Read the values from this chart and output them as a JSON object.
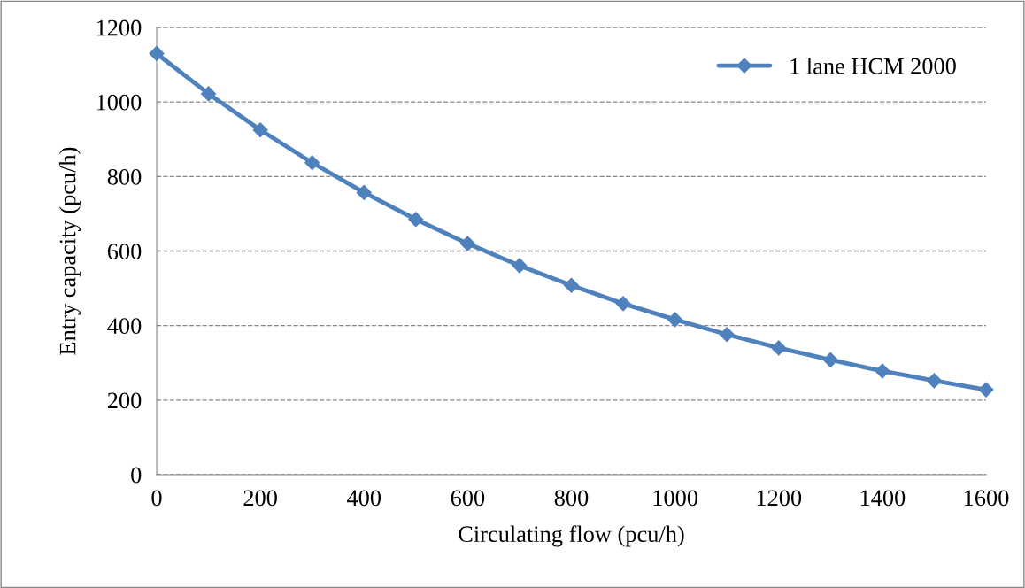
{
  "chart_data": {
    "type": "line",
    "xlabel": "Circulating flow (pcu/h)",
    "ylabel": "Entry capacity (pcu/h)",
    "x": [
      0,
      100,
      200,
      300,
      400,
      500,
      600,
      700,
      800,
      900,
      1000,
      1100,
      1200,
      1300,
      1400,
      1500,
      1600
    ],
    "series": [
      {
        "name": "1 lane HCM 2000",
        "color": "#4f81bd",
        "values": [
          1130,
          1022,
          925,
          837,
          757,
          685,
          620,
          561,
          508,
          459,
          416,
          376,
          340,
          308,
          278,
          252,
          228
        ]
      }
    ],
    "xlim": [
      0,
      1600
    ],
    "xticks": [
      0,
      200,
      400,
      600,
      800,
      1000,
      1200,
      1400,
      1600
    ],
    "ylim": [
      0,
      1200
    ],
    "yticks": [
      0,
      200,
      400,
      600,
      800,
      1000,
      1200
    ],
    "grid": "y",
    "legend": "top right",
    "marker": "diamond",
    "line_style": "solid"
  }
}
